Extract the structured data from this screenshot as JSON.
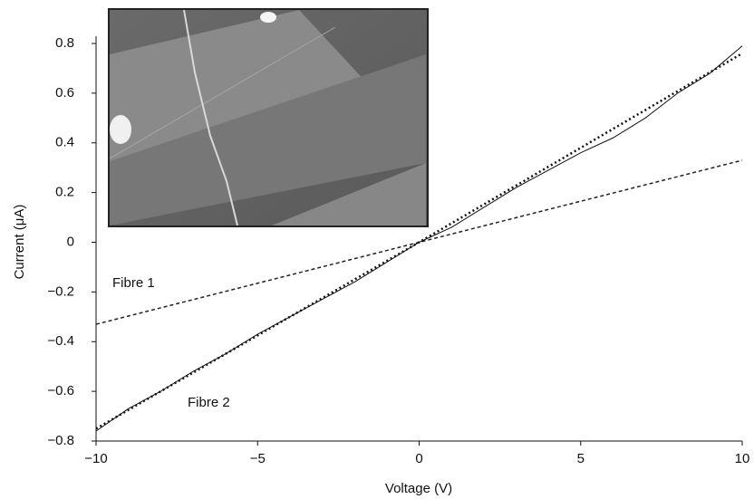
{
  "chart_data": {
    "type": "line",
    "x_label": "Voltage (V)",
    "y_label": "Current (μA)",
    "annotations": [
      "Fibre 1",
      "Fibre 2"
    ],
    "x": [
      -10,
      -9,
      -8,
      -7,
      -6,
      -5,
      -4,
      -3,
      -2,
      -1,
      0,
      1,
      2,
      3,
      4,
      5,
      6,
      7,
      8,
      9,
      10
    ],
    "series": [
      {
        "style": "dashed",
        "color": "#222",
        "values": [
          -0.33,
          -0.297,
          -0.264,
          -0.231,
          -0.198,
          -0.165,
          -0.132,
          -0.099,
          -0.066,
          -0.033,
          0,
          0.033,
          0.066,
          0.099,
          0.132,
          0.165,
          0.198,
          0.231,
          0.264,
          0.297,
          0.33
        ]
      },
      {
        "style": "solid",
        "color": "#111",
        "values": [
          -0.76,
          -0.67,
          -0.6,
          -0.52,
          -0.45,
          -0.37,
          -0.3,
          -0.23,
          -0.16,
          -0.08,
          0,
          0.06,
          0.14,
          0.22,
          0.29,
          0.36,
          0.42,
          0.5,
          0.6,
          0.68,
          0.79
        ]
      },
      {
        "style": "dotted",
        "color": "#111",
        "values": [
          -0.75,
          -0.675,
          -0.6,
          -0.525,
          -0.45,
          -0.375,
          -0.3,
          -0.225,
          -0.15,
          -0.075,
          0,
          0.076,
          0.152,
          0.228,
          0.304,
          0.38,
          0.456,
          0.532,
          0.608,
          0.684,
          0.76
        ]
      }
    ],
    "xlim": [
      -10,
      10
    ],
    "xticks": [
      {
        "value": -10,
        "label": "−10"
      },
      {
        "value": -5,
        "label": "−5"
      },
      0,
      5,
      10
    ],
    "ylim": [
      -0.8,
      0.8
    ],
    "yticks": [
      {
        "value": -0.8,
        "label": "−0.8"
      },
      {
        "value": -0.6,
        "label": "−0.6"
      },
      {
        "value": -0.4,
        "label": "−0.4"
      },
      {
        "value": -0.2,
        "label": "−0.2"
      },
      0,
      0.2,
      0.4,
      0.6,
      0.8
    ],
    "grid": false
  }
}
